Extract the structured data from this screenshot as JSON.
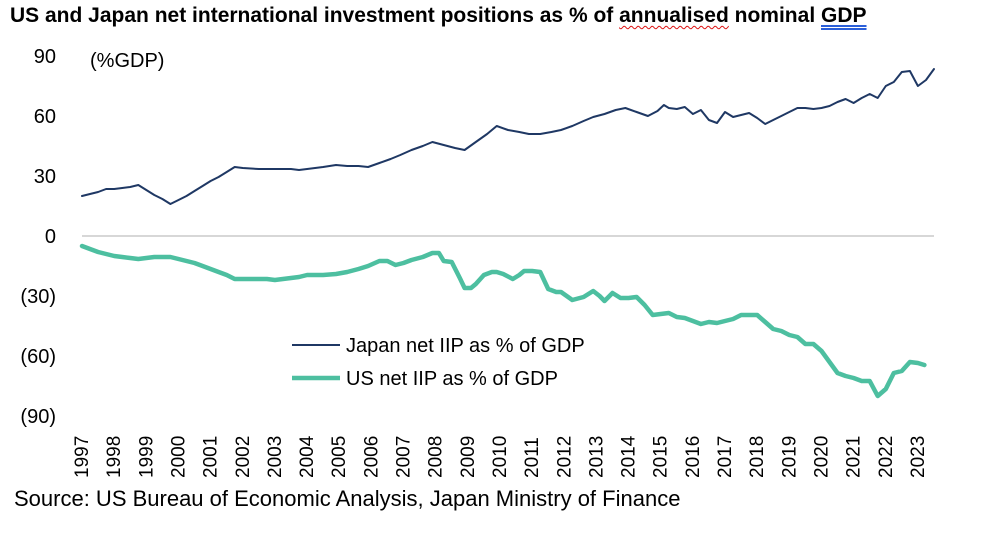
{
  "title": {
    "part1": "US and Japan net international investment positions as % of ",
    "part2": "annualised",
    "part3": " nominal ",
    "part4": "GDP"
  },
  "source": "Source: US Bureau of Economic Analysis, Japan Ministry of Finance",
  "colors": {
    "japan": "#1f3864",
    "us": "#4dbfa0",
    "axis": "#bfbfbf"
  },
  "chart_data": {
    "type": "line",
    "title": "US and Japan net international investment positions as % of annualised nominal GDP",
    "ylabel": "(%GDP)",
    "ylim": [
      -90,
      90
    ],
    "yticks": [
      90,
      60,
      30,
      0,
      -30,
      -60,
      -90
    ],
    "ytick_labels": [
      "90",
      "60",
      "30",
      "0",
      "(30)",
      "(60)",
      "(90)"
    ],
    "xlim": [
      1997,
      2023.5
    ],
    "xticks": [
      "1997",
      "1998",
      "1999",
      "2000",
      "2001",
      "2002",
      "2003",
      "2004",
      "2005",
      "2006",
      "2007",
      "2008",
      "2009",
      "2010",
      "2011",
      "2012",
      "2013",
      "2014",
      "2015",
      "2016",
      "2017",
      "2018",
      "2019",
      "2020",
      "2021",
      "2022",
      "2023"
    ],
    "legend_position": "center",
    "series": [
      {
        "name": "Japan net IIP as % of GDP",
        "color": "#1f3864",
        "points": [
          [
            1997.0,
            20
          ],
          [
            1997.25,
            21
          ],
          [
            1997.5,
            22
          ],
          [
            1997.75,
            23.5
          ],
          [
            1998.0,
            23.5
          ],
          [
            1998.25,
            24
          ],
          [
            1998.5,
            24.5
          ],
          [
            1998.75,
            25.5
          ],
          [
            1999.0,
            23
          ],
          [
            1999.25,
            20.5
          ],
          [
            1999.5,
            18.5
          ],
          [
            1999.75,
            16
          ],
          [
            2000.0,
            18
          ],
          [
            2000.25,
            20
          ],
          [
            2000.5,
            22.5
          ],
          [
            2000.75,
            25
          ],
          [
            2001.0,
            27.5
          ],
          [
            2001.25,
            29.5
          ],
          [
            2001.5,
            32
          ],
          [
            2001.75,
            34.5
          ],
          [
            2002.0,
            34
          ],
          [
            2002.5,
            33.5
          ],
          [
            2003.0,
            33.5
          ],
          [
            2003.5,
            33.5
          ],
          [
            2003.75,
            33
          ],
          [
            2004.0,
            33.5
          ],
          [
            2004.5,
            34.5
          ],
          [
            2004.9,
            35.5
          ],
          [
            2005.25,
            35
          ],
          [
            2005.6,
            35
          ],
          [
            2005.9,
            34.5
          ],
          [
            2006.25,
            36.5
          ],
          [
            2006.6,
            38.5
          ],
          [
            2006.9,
            40.5
          ],
          [
            2007.25,
            43
          ],
          [
            2007.6,
            45
          ],
          [
            2007.9,
            47
          ],
          [
            2008.25,
            45.5
          ],
          [
            2008.6,
            44
          ],
          [
            2008.9,
            43
          ],
          [
            2009.25,
            47
          ],
          [
            2009.6,
            51
          ],
          [
            2009.9,
            55
          ],
          [
            2010.25,
            53
          ],
          [
            2010.6,
            52
          ],
          [
            2010.9,
            51
          ],
          [
            2011.25,
            51
          ],
          [
            2011.6,
            52
          ],
          [
            2011.9,
            53
          ],
          [
            2012.25,
            55
          ],
          [
            2012.6,
            57.5
          ],
          [
            2012.9,
            59.5
          ],
          [
            2013.25,
            61
          ],
          [
            2013.6,
            63
          ],
          [
            2013.9,
            64
          ],
          [
            2014.25,
            62
          ],
          [
            2014.6,
            60
          ],
          [
            2014.9,
            62.5
          ],
          [
            2015.1,
            65.5
          ],
          [
            2015.25,
            64
          ],
          [
            2015.5,
            63.5
          ],
          [
            2015.75,
            64.5
          ],
          [
            2016.0,
            61
          ],
          [
            2016.25,
            63
          ],
          [
            2016.5,
            58
          ],
          [
            2016.75,
            56.5
          ],
          [
            2017.0,
            62
          ],
          [
            2017.25,
            59.5
          ],
          [
            2017.75,
            61.5
          ],
          [
            2018.0,
            59
          ],
          [
            2018.25,
            56
          ],
          [
            2018.5,
            58
          ],
          [
            2018.75,
            60
          ],
          [
            2019.0,
            62
          ],
          [
            2019.25,
            64
          ],
          [
            2019.5,
            64
          ],
          [
            2019.75,
            63.5
          ],
          [
            2020.0,
            64
          ],
          [
            2020.25,
            65
          ],
          [
            2020.5,
            67
          ],
          [
            2020.75,
            68.5
          ],
          [
            2021.0,
            66.5
          ],
          [
            2021.25,
            69
          ],
          [
            2021.5,
            71
          ],
          [
            2021.75,
            69
          ],
          [
            2022.0,
            75
          ],
          [
            2022.25,
            77
          ],
          [
            2022.5,
            82
          ],
          [
            2022.75,
            82.5
          ],
          [
            2023.0,
            75
          ],
          [
            2023.25,
            78
          ],
          [
            2023.5,
            83.5
          ]
        ]
      },
      {
        "name": "US net IIP as % of GDP",
        "color": "#4dbfa0",
        "points": [
          [
            1997.0,
            -5
          ],
          [
            1997.25,
            -6.5
          ],
          [
            1997.5,
            -8
          ],
          [
            1997.75,
            -9
          ],
          [
            1998.0,
            -10
          ],
          [
            1998.25,
            -10.5
          ],
          [
            1998.5,
            -11
          ],
          [
            1998.75,
            -11.5
          ],
          [
            1999.0,
            -11
          ],
          [
            1999.25,
            -10.5
          ],
          [
            1999.5,
            -10.5
          ],
          [
            1999.75,
            -10.5
          ],
          [
            2000.0,
            -11.5
          ],
          [
            2000.25,
            -12.5
          ],
          [
            2000.5,
            -13.5
          ],
          [
            2000.75,
            -15
          ],
          [
            2001.0,
            -16.5
          ],
          [
            2001.25,
            -18
          ],
          [
            2001.5,
            -19.5
          ],
          [
            2001.75,
            -21.5
          ],
          [
            2002.0,
            -21.5
          ],
          [
            2002.25,
            -21.5
          ],
          [
            2002.5,
            -21.5
          ],
          [
            2002.75,
            -21.5
          ],
          [
            2003.0,
            -22
          ],
          [
            2003.25,
            -21.5
          ],
          [
            2003.5,
            -21
          ],
          [
            2003.75,
            -20.5
          ],
          [
            2004.0,
            -19.5
          ],
          [
            2004.5,
            -19.5
          ],
          [
            2004.9,
            -19
          ],
          [
            2005.25,
            -18
          ],
          [
            2005.6,
            -16.5
          ],
          [
            2005.9,
            -15
          ],
          [
            2006.25,
            -12.5
          ],
          [
            2006.5,
            -12.5
          ],
          [
            2006.75,
            -14.5
          ],
          [
            2007.0,
            -13.5
          ],
          [
            2007.25,
            -12
          ],
          [
            2007.6,
            -10.5
          ],
          [
            2007.9,
            -8.5
          ],
          [
            2008.1,
            -8.5
          ],
          [
            2008.25,
            -12.5
          ],
          [
            2008.5,
            -13
          ],
          [
            2008.75,
            -21
          ],
          [
            2008.9,
            -26
          ],
          [
            2009.1,
            -26
          ],
          [
            2009.25,
            -24
          ],
          [
            2009.5,
            -19.5
          ],
          [
            2009.75,
            -18
          ],
          [
            2009.9,
            -18
          ],
          [
            2010.1,
            -19
          ],
          [
            2010.4,
            -21.5
          ],
          [
            2010.6,
            -19.5
          ],
          [
            2010.75,
            -17.5
          ],
          [
            2011.0,
            -17.5
          ],
          [
            2011.25,
            -18
          ],
          [
            2011.5,
            -26.5
          ],
          [
            2011.75,
            -28
          ],
          [
            2011.9,
            -28
          ],
          [
            2012.25,
            -32
          ],
          [
            2012.6,
            -30.5
          ],
          [
            2012.9,
            -27.5
          ],
          [
            2013.1,
            -30
          ],
          [
            2013.25,
            -32.5
          ],
          [
            2013.5,
            -28.5
          ],
          [
            2013.75,
            -31
          ],
          [
            2014.0,
            -31
          ],
          [
            2014.25,
            -30.5
          ],
          [
            2014.5,
            -34.5
          ],
          [
            2014.75,
            -39.5
          ],
          [
            2015.0,
            -39
          ],
          [
            2015.25,
            -38.5
          ],
          [
            2015.5,
            -40.5
          ],
          [
            2015.75,
            -41
          ],
          [
            2016.0,
            -42.5
          ],
          [
            2016.25,
            -44
          ],
          [
            2016.5,
            -43
          ],
          [
            2016.75,
            -43.5
          ],
          [
            2017.0,
            -42.5
          ],
          [
            2017.25,
            -41.5
          ],
          [
            2017.5,
            -39.5
          ],
          [
            2017.75,
            -39.5
          ],
          [
            2018.0,
            -39.5
          ],
          [
            2018.25,
            -43
          ],
          [
            2018.5,
            -46.5
          ],
          [
            2018.75,
            -47.5
          ],
          [
            2019.0,
            -49.5
          ],
          [
            2019.25,
            -50.5
          ],
          [
            2019.5,
            -54
          ],
          [
            2019.75,
            -54
          ],
          [
            2020.0,
            -57.5
          ],
          [
            2020.25,
            -63
          ],
          [
            2020.5,
            -68.5
          ],
          [
            2020.75,
            -70
          ],
          [
            2021.0,
            -71
          ],
          [
            2021.25,
            -72.5
          ],
          [
            2021.5,
            -72.5
          ],
          [
            2021.75,
            -80
          ],
          [
            2022.0,
            -76.5
          ],
          [
            2022.25,
            -68.5
          ],
          [
            2022.5,
            -67.5
          ],
          [
            2022.75,
            -63
          ],
          [
            2023.0,
            -63.5
          ],
          [
            2023.2,
            -64.5
          ]
        ]
      }
    ]
  }
}
